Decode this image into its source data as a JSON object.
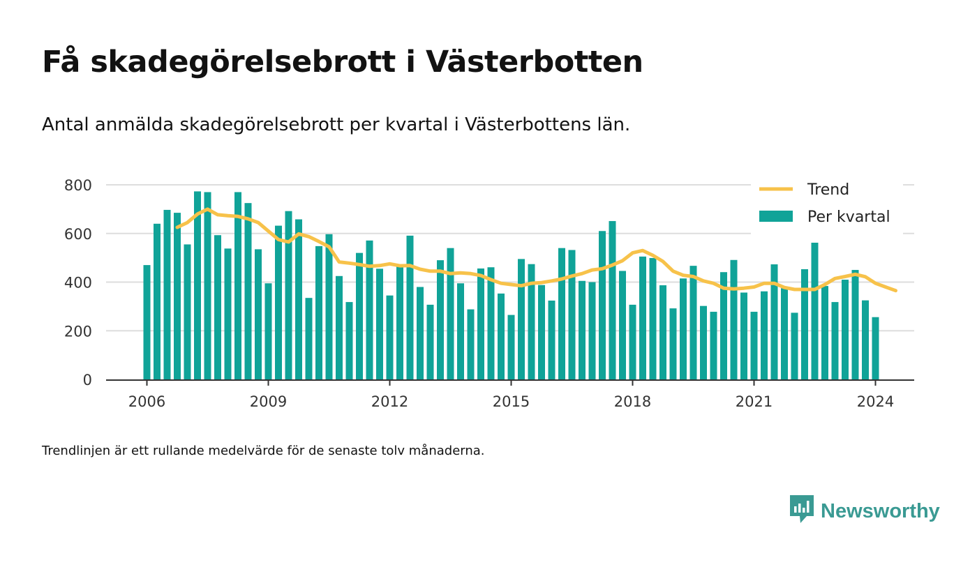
{
  "title": "Få skadegörelsebrott i Västerbotten",
  "subtitle": "Antal anmälda skadegörelsebrott per kvartal i Västerbottens län.",
  "footnote": "Trendlinjen är ett rullande medelvärde för de senaste tolv månaderna.",
  "brand": "Newsworthy",
  "colors": {
    "bars": "#10a398",
    "trend": "#f7c24a",
    "grid": "#dddddd",
    "axis": "#333333",
    "brand": "#3a9a93"
  },
  "chart_data": {
    "type": "bar",
    "x_start": "2006-Q1",
    "x_ticks": [
      "2006",
      "2009",
      "2012",
      "2015",
      "2018",
      "2021",
      "2024"
    ],
    "y_ticks": [
      "0",
      "200",
      "400",
      "600",
      "800"
    ],
    "ylim": [
      0,
      800
    ],
    "grid": true,
    "legend_position": "top-right",
    "series": [
      {
        "name": "Per kvartal",
        "type": "bar",
        "values": [
          470,
          640,
          697,
          685,
          555,
          773,
          770,
          593,
          538,
          770,
          725,
          535,
          395,
          632,
          692,
          658,
          335,
          548,
          597,
          425,
          318,
          520,
          571,
          455,
          345,
          472,
          591,
          380,
          307,
          490,
          540,
          395,
          288,
          456,
          461,
          353,
          265,
          495,
          474,
          388,
          324,
          540,
          532,
          405,
          400,
          610,
          651,
          446,
          307,
          505,
          499,
          387,
          292,
          415,
          467,
          302,
          278,
          441,
          491,
          357,
          278,
          362,
          473,
          375,
          274,
          453,
          562,
          384,
          318,
          410,
          450,
          325,
          256
        ]
      },
      {
        "name": "Trend",
        "type": "line",
        "start_index": 3,
        "values": [
          625,
          645,
          680,
          700,
          677,
          673,
          670,
          660,
          645,
          610,
          575,
          565,
          598,
          587,
          567,
          545,
          483,
          478,
          472,
          465,
          468,
          475,
          467,
          468,
          453,
          445,
          445,
          435,
          438,
          435,
          427,
          410,
          395,
          390,
          385,
          395,
          398,
          405,
          413,
          425,
          435,
          450,
          455,
          470,
          488,
          520,
          530,
          510,
          485,
          445,
          428,
          423,
          405,
          395,
          375,
          372,
          375,
          380,
          395,
          395,
          378,
          370,
          370,
          370,
          390,
          415,
          423,
          432,
          422,
          395,
          380,
          365
        ]
      }
    ]
  }
}
